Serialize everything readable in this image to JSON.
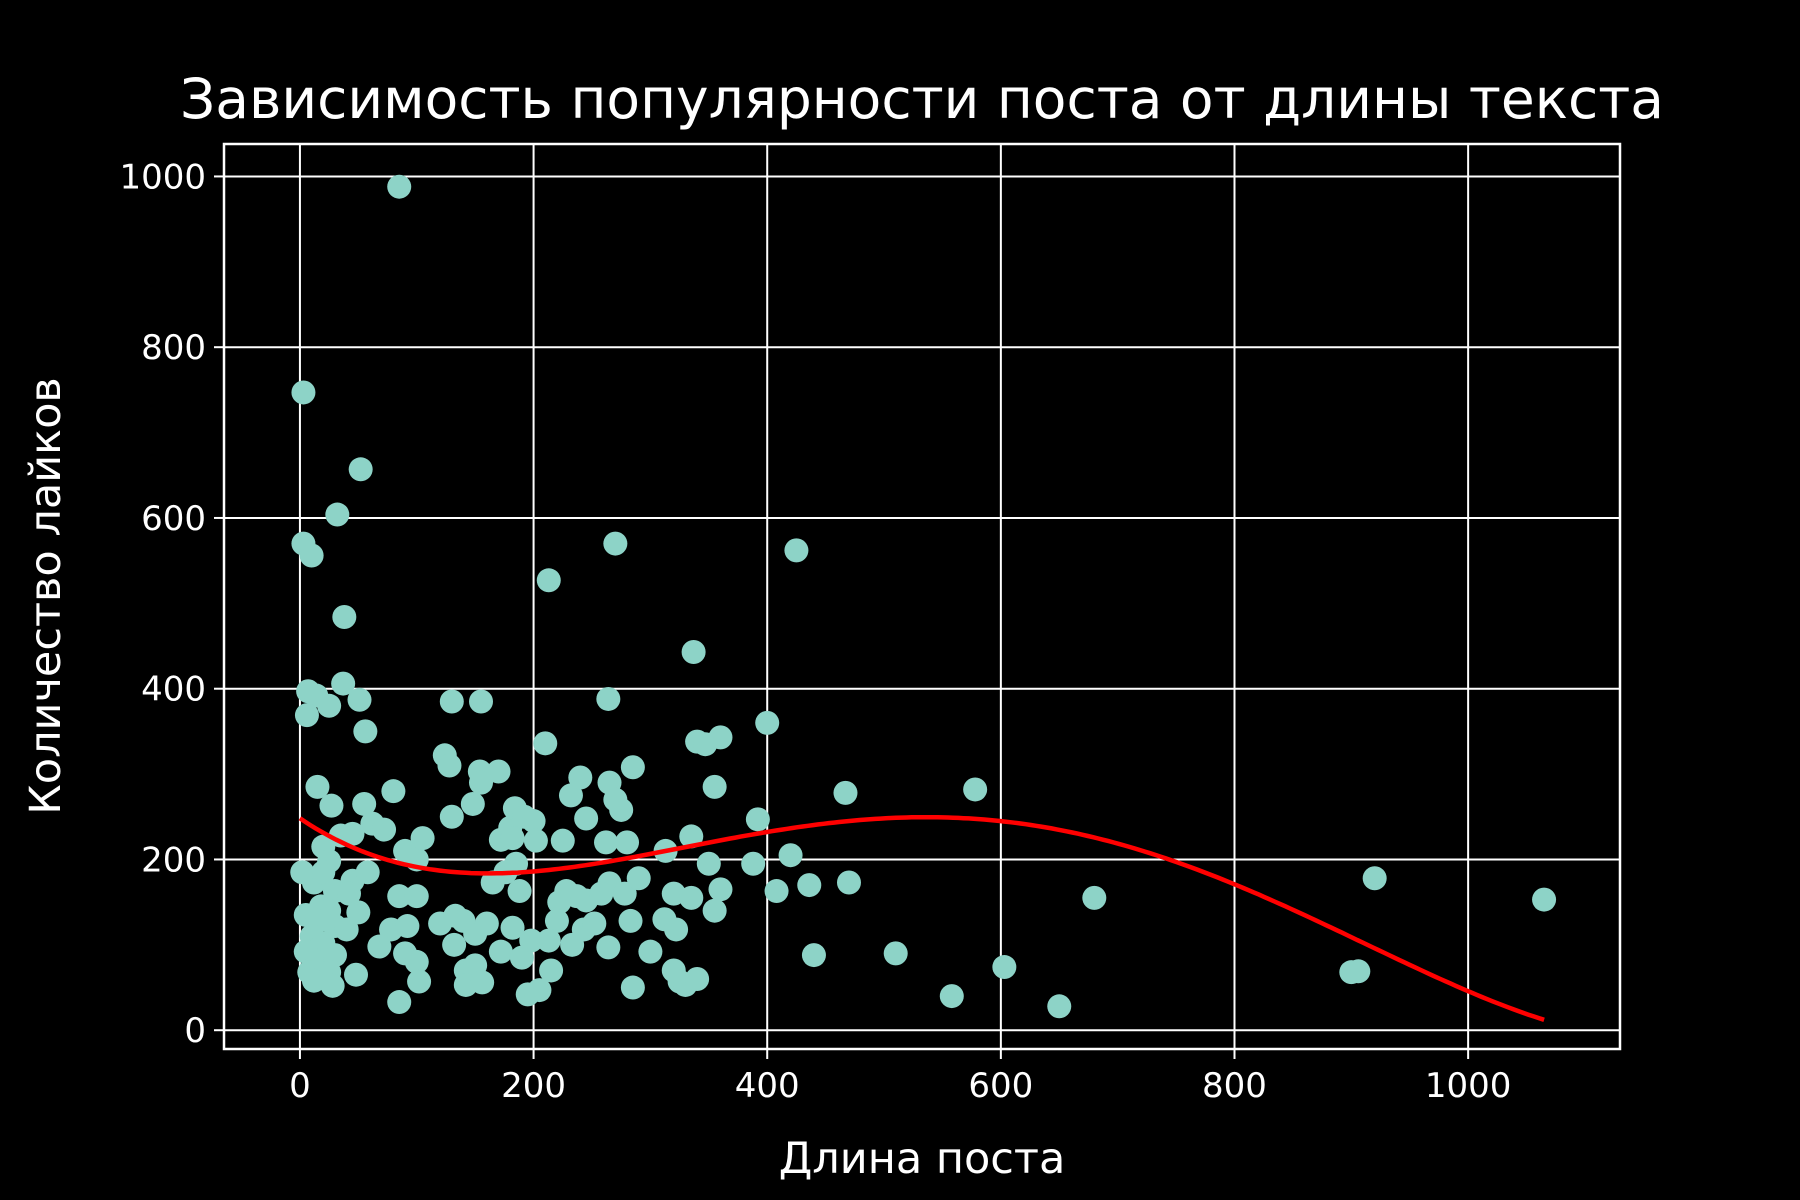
{
  "chart_data": {
    "type": "scatter",
    "title": "Зависимость популярности поста от длины текста",
    "xlabel": "Длина поста",
    "ylabel": "Количество лайков",
    "xlim": [
      -65,
      1130
    ],
    "ylim": [
      -22,
      1038
    ],
    "xticks": [
      0,
      200,
      400,
      600,
      800,
      1000
    ],
    "yticks": [
      0,
      200,
      400,
      600,
      800,
      1000
    ],
    "xtick_labels": [
      "0",
      "200",
      "400",
      "600",
      "800",
      "1000"
    ],
    "ytick_labels": [
      "0",
      "200",
      "400",
      "600",
      "800",
      "1000"
    ],
    "grid": true,
    "colors": {
      "background": "#000000",
      "points": "#8dd3c7",
      "trend": "#ff0000",
      "grid": "#ffffff"
    },
    "points": [
      [
        85,
        988
      ],
      [
        3,
        747
      ],
      [
        52,
        657
      ],
      [
        3,
        570
      ],
      [
        32,
        604
      ],
      [
        10,
        556
      ],
      [
        38,
        484
      ],
      [
        7,
        397
      ],
      [
        14,
        392
      ],
      [
        37,
        406
      ],
      [
        25,
        380
      ],
      [
        6,
        369
      ],
      [
        51,
        387
      ],
      [
        56,
        350
      ],
      [
        15,
        285
      ],
      [
        27,
        263
      ],
      [
        80,
        280
      ],
      [
        55,
        265
      ],
      [
        45,
        230
      ],
      [
        62,
        242
      ],
      [
        72,
        235
      ],
      [
        20,
        215
      ],
      [
        35,
        228
      ],
      [
        25,
        198
      ],
      [
        12,
        173
      ],
      [
        20,
        185
      ],
      [
        45,
        175
      ],
      [
        58,
        185
      ],
      [
        2,
        185
      ],
      [
        30,
        163
      ],
      [
        42,
        160
      ],
      [
        18,
        145
      ],
      [
        25,
        140
      ],
      [
        5,
        135
      ],
      [
        15,
        128
      ],
      [
        30,
        122
      ],
      [
        40,
        118
      ],
      [
        50,
        138
      ],
      [
        10,
        110
      ],
      [
        20,
        102
      ],
      [
        5,
        92
      ],
      [
        15,
        80
      ],
      [
        30,
        88
      ],
      [
        8,
        68
      ],
      [
        25,
        68
      ],
      [
        12,
        58
      ],
      [
        28,
        52
      ],
      [
        48,
        65
      ],
      [
        90,
        210
      ],
      [
        100,
        200
      ],
      [
        105,
        225
      ],
      [
        85,
        157
      ],
      [
        100,
        157
      ],
      [
        78,
        118
      ],
      [
        92,
        122
      ],
      [
        68,
        98
      ],
      [
        90,
        90
      ],
      [
        100,
        80
      ],
      [
        102,
        57
      ],
      [
        85,
        33
      ],
      [
        130,
        385
      ],
      [
        124,
        322
      ],
      [
        128,
        310
      ],
      [
        155,
        385
      ],
      [
        154,
        303
      ],
      [
        170,
        303
      ],
      [
        155,
        290
      ],
      [
        148,
        265
      ],
      [
        130,
        250
      ],
      [
        172,
        223
      ],
      [
        180,
        237
      ],
      [
        184,
        260
      ],
      [
        192,
        250
      ],
      [
        200,
        245
      ],
      [
        182,
        225
      ],
      [
        202,
        222
      ],
      [
        176,
        185
      ],
      [
        185,
        195
      ],
      [
        165,
        173
      ],
      [
        188,
        163
      ],
      [
        120,
        125
      ],
      [
        133,
        134
      ],
      [
        140,
        128
      ],
      [
        150,
        113
      ],
      [
        160,
        125
      ],
      [
        132,
        100
      ],
      [
        172,
        92
      ],
      [
        182,
        120
      ],
      [
        190,
        85
      ],
      [
        198,
        105
      ],
      [
        142,
        70
      ],
      [
        150,
        76
      ],
      [
        142,
        53
      ],
      [
        156,
        56
      ],
      [
        195,
        42
      ],
      [
        205,
        47
      ],
      [
        213,
        527
      ],
      [
        210,
        336
      ],
      [
        232,
        275
      ],
      [
        240,
        296
      ],
      [
        245,
        248
      ],
      [
        225,
        222
      ],
      [
        228,
        163
      ],
      [
        237,
        157
      ],
      [
        222,
        150
      ],
      [
        245,
        152
      ],
      [
        220,
        128
      ],
      [
        213,
        105
      ],
      [
        233,
        100
      ],
      [
        243,
        118
      ],
      [
        252,
        125
      ],
      [
        215,
        70
      ],
      [
        264,
        388
      ],
      [
        270,
        570
      ],
      [
        265,
        290
      ],
      [
        285,
        308
      ],
      [
        275,
        258
      ],
      [
        262,
        220
      ],
      [
        280,
        220
      ],
      [
        270,
        270
      ],
      [
        265,
        172
      ],
      [
        278,
        160
      ],
      [
        290,
        178
      ],
      [
        258,
        160
      ],
      [
        283,
        128
      ],
      [
        300,
        92
      ],
      [
        264,
        97
      ],
      [
        285,
        50
      ],
      [
        337,
        443
      ],
      [
        340,
        338
      ],
      [
        347,
        335
      ],
      [
        360,
        343
      ],
      [
        355,
        285
      ],
      [
        335,
        227
      ],
      [
        350,
        195
      ],
      [
        360,
        165
      ],
      [
        355,
        140
      ],
      [
        313,
        210
      ],
      [
        320,
        160
      ],
      [
        335,
        155
      ],
      [
        312,
        130
      ],
      [
        322,
        118
      ],
      [
        320,
        70
      ],
      [
        325,
        57
      ],
      [
        330,
        53
      ],
      [
        340,
        60
      ],
      [
        400,
        360
      ],
      [
        392,
        247
      ],
      [
        388,
        195
      ],
      [
        425,
        562
      ],
      [
        420,
        205
      ],
      [
        408,
        163
      ],
      [
        436,
        170
      ],
      [
        440,
        88
      ],
      [
        467,
        278
      ],
      [
        470,
        173
      ],
      [
        510,
        90
      ],
      [
        558,
        40
      ],
      [
        578,
        282
      ],
      [
        603,
        74
      ],
      [
        650,
        28
      ],
      [
        680,
        155
      ],
      [
        900,
        68
      ],
      [
        906,
        69
      ],
      [
        920,
        178
      ],
      [
        1065,
        153
      ]
    ],
    "trend_coeffs": [
      248.2,
      -0.9294,
      0.004145,
      -5.7276e-06,
      2.3095e-09
    ],
    "trend_xrange": [
      0,
      1065
    ]
  }
}
